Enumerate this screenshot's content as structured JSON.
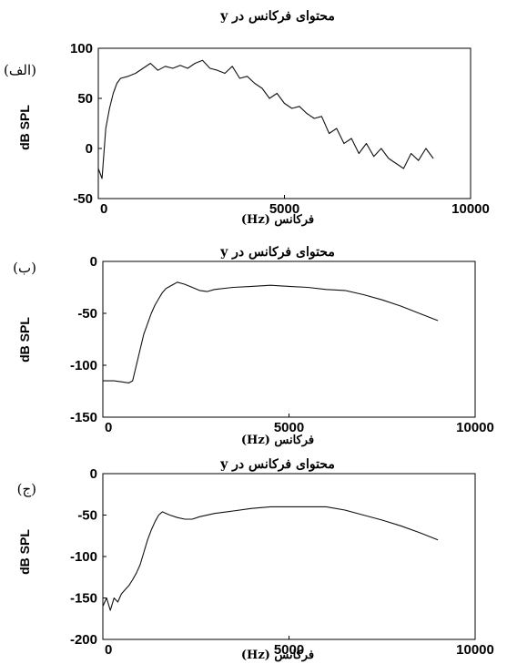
{
  "chart_data": [
    {
      "type": "line",
      "panel_label": "(الف)",
      "title": "محتوای فرکانس در y",
      "xlabel": "فرکانس (Hz)",
      "ylabel": "dB SPL",
      "xlim": [
        0,
        10000
      ],
      "ylim": [
        -50,
        100
      ],
      "xticks": [
        "0",
        "5000",
        "10000"
      ],
      "yticks": [
        "-50",
        "0",
        "50",
        "100"
      ],
      "series": [
        {
          "x": [
            0,
            100,
            200,
            300,
            400,
            500,
            600,
            800,
            1000,
            1200,
            1400,
            1600,
            1800,
            2000,
            2200,
            2400,
            2600,
            2800,
            3000,
            3200,
            3400,
            3600,
            3800,
            4000,
            4200,
            4400,
            4600,
            4800,
            5000,
            5200,
            5400,
            5600,
            5800,
            6000,
            6200,
            6400,
            6600,
            6800,
            7000,
            7200,
            7400,
            7600,
            7800,
            8000,
            8200,
            8400,
            8600,
            8800,
            9000
          ],
          "y": [
            -20,
            -30,
            20,
            40,
            55,
            65,
            70,
            72,
            75,
            80,
            85,
            78,
            82,
            80,
            83,
            80,
            85,
            88,
            80,
            78,
            75,
            82,
            70,
            72,
            65,
            60,
            50,
            55,
            45,
            40,
            42,
            35,
            30,
            32,
            15,
            20,
            5,
            10,
            -5,
            5,
            -8,
            0,
            -10,
            -15,
            -20,
            -5,
            -12,
            0,
            -10
          ]
        }
      ]
    },
    {
      "type": "line",
      "panel_label": "(ب)",
      "title": "محتوای فرکانس در y",
      "xlabel": "فرکانس (Hz)",
      "ylabel": "dB SPL",
      "xlim": [
        0,
        10000
      ],
      "ylim": [
        -150,
        0
      ],
      "xticks": [
        "0",
        "5000",
        "10000"
      ],
      "yticks": [
        "-150",
        "-100",
        "-50",
        "0"
      ],
      "series": [
        {
          "x": [
            0,
            300,
            500,
            700,
            800,
            900,
            1000,
            1100,
            1200,
            1300,
            1400,
            1500,
            1600,
            1700,
            1800,
            1900,
            2000,
            2200,
            2400,
            2600,
            2800,
            3000,
            3500,
            4000,
            4500,
            5000,
            5500,
            6000,
            6500,
            7000,
            7500,
            8000,
            8500,
            9000
          ],
          "y": [
            -115,
            -115,
            -116,
            -117,
            -115,
            -100,
            -85,
            -70,
            -60,
            -50,
            -42,
            -36,
            -30,
            -26,
            -24,
            -22,
            -20,
            -22,
            -25,
            -28,
            -29,
            -27,
            -25,
            -24,
            -23,
            -24,
            -25,
            -27,
            -28,
            -32,
            -37,
            -43,
            -50,
            -57
          ]
        }
      ]
    },
    {
      "type": "line",
      "panel_label": "(ج)",
      "title": "محتوای فرکانس در y",
      "xlabel": "فرکانس (Hz)",
      "ylabel": "dB SPL",
      "xlim": [
        0,
        10000
      ],
      "ylim": [
        -200,
        0
      ],
      "xticks": [
        "0",
        "5000",
        "10000"
      ],
      "yticks": [
        "-200",
        "-150",
        "-100",
        "-50",
        "0"
      ],
      "series": [
        {
          "x": [
            0,
            100,
            200,
            300,
            400,
            500,
            600,
            700,
            800,
            900,
            1000,
            1100,
            1200,
            1300,
            1400,
            1500,
            1600,
            1700,
            1800,
            2000,
            2200,
            2400,
            2600,
            3000,
            3500,
            4000,
            4500,
            5000,
            5500,
            6000,
            6500,
            7000,
            7500,
            8000,
            8500,
            9000
          ],
          "y": [
            -160,
            -150,
            -165,
            -150,
            -155,
            -145,
            -140,
            -135,
            -128,
            -120,
            -110,
            -95,
            -80,
            -68,
            -58,
            -50,
            -46,
            -48,
            -50,
            -53,
            -55,
            -55,
            -52,
            -48,
            -45,
            -42,
            -40,
            -40,
            -40,
            -40,
            -44,
            -50,
            -56,
            -63,
            -71,
            -80
          ]
        }
      ]
    }
  ]
}
